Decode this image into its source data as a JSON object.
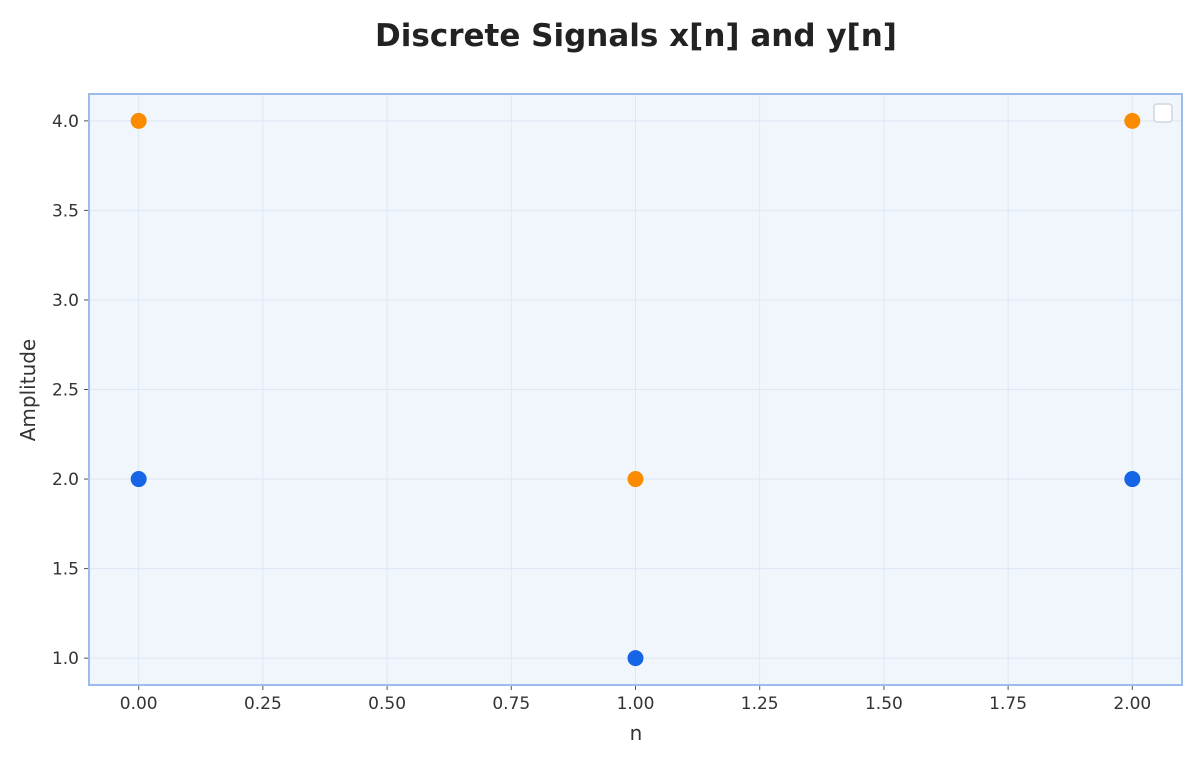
{
  "chart_data": {
    "type": "scatter",
    "title": "Discrete Signals x[n] and y[n]",
    "xlabel": "n",
    "ylabel": "Amplitude",
    "xlim": [
      -0.1,
      2.1
    ],
    "ylim": [
      0.85,
      4.15
    ],
    "x_ticks": [
      0.0,
      0.25,
      0.5,
      0.75,
      1.0,
      1.25,
      1.5,
      1.75,
      2.0
    ],
    "x_tick_labels": [
      "0.00",
      "0.25",
      "0.50",
      "0.75",
      "1.00",
      "1.25",
      "1.50",
      "1.75",
      "2.00"
    ],
    "y_ticks": [
      1.0,
      1.5,
      2.0,
      2.5,
      3.0,
      3.5,
      4.0
    ],
    "y_tick_labels": [
      "1.0",
      "1.5",
      "2.0",
      "2.5",
      "3.0",
      "3.5",
      "4.0"
    ],
    "grid": true,
    "legend": "top-right (empty box)",
    "series": [
      {
        "color": "#1565e6",
        "points": [
          {
            "x": 0,
            "y": 2.0
          },
          {
            "x": 1,
            "y": 1.0
          },
          {
            "x": 2,
            "y": 2.0
          }
        ]
      },
      {
        "color": "#fb8c00",
        "points": [
          {
            "x": 0,
            "y": 4.0
          },
          {
            "x": 1,
            "y": 2.0
          },
          {
            "x": 2,
            "y": 4.0
          }
        ]
      }
    ],
    "colors": {
      "plot_background": "#f1f6fd",
      "plot_border": "#9bbcec",
      "grid": "#dfe7f4"
    }
  }
}
